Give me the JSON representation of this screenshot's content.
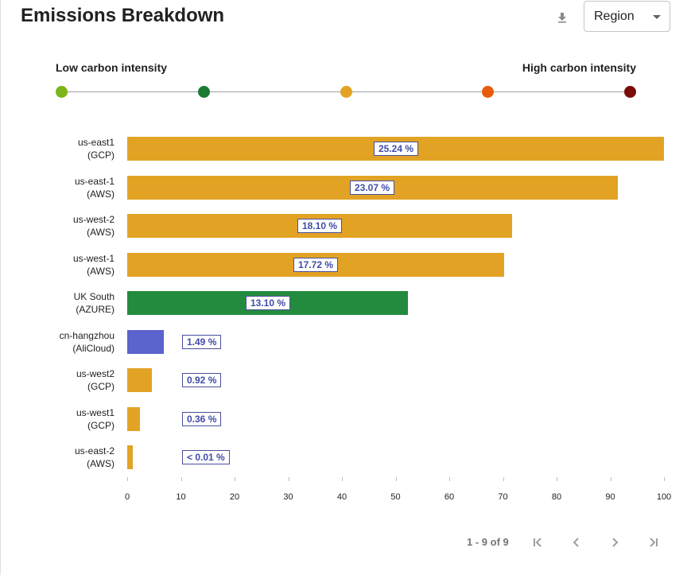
{
  "header": {
    "title": "Emissions Breakdown",
    "download_icon": "download-icon",
    "dropdown_value": "Region"
  },
  "legend": {
    "low_label": "Low carbon intensity",
    "high_label": "High carbon intensity",
    "colors": [
      "#7cb518",
      "#1b7b35",
      "#e2a324",
      "#e65c0c",
      "#7a0c0c"
    ]
  },
  "chart_data": {
    "type": "bar",
    "orientation": "horizontal",
    "categories": [
      [
        "us-east1",
        "(GCP)"
      ],
      [
        "us-east-1",
        "(AWS)"
      ],
      [
        "us-west-2",
        "(AWS)"
      ],
      [
        "us-west-1",
        "(AWS)"
      ],
      [
        "UK South",
        "(AZURE)"
      ],
      [
        "cn-hangzhou",
        "(AliCloud)"
      ],
      [
        "us-west2",
        "(GCP)"
      ],
      [
        "us-west1",
        "(GCP)"
      ],
      [
        "us-east-2",
        "(AWS)"
      ]
    ],
    "values": [
      100,
      91.4,
      71.7,
      70.2,
      52.3,
      6.8,
      4.6,
      2.4,
      1.0
    ],
    "labels": [
      "25.24 %",
      "23.07 %",
      "18.10 %",
      "17.72 %",
      "13.10 %",
      "1.49 %",
      "0.92 %",
      "0.36 %",
      "< 0.01 %"
    ],
    "colors": [
      "#e2a324",
      "#e2a324",
      "#e2a324",
      "#e2a324",
      "#238b3e",
      "#5b63cc",
      "#e2a324",
      "#e2a324",
      "#e2a324"
    ],
    "xlim": [
      0,
      100
    ],
    "xticks": [
      "0",
      "10",
      "20",
      "30",
      "40",
      "50",
      "60",
      "70",
      "80",
      "90",
      "100"
    ],
    "grid": false
  },
  "pagination": {
    "text": "1 - 9 of 9"
  }
}
